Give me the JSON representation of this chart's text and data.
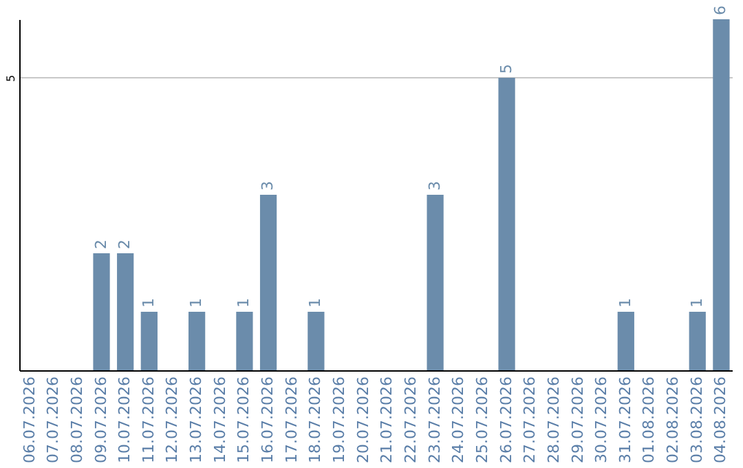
{
  "chart_data": {
    "type": "bar",
    "categories": [
      "06.07.2026",
      "07.07.2026",
      "08.07.2026",
      "09.07.2026",
      "10.07.2026",
      "11.07.2026",
      "12.07.2026",
      "13.07.2026",
      "14.07.2026",
      "15.07.2026",
      "16.07.2026",
      "17.07.2026",
      "18.07.2026",
      "19.07.2026",
      "20.07.2026",
      "21.07.2026",
      "22.07.2026",
      "23.07.2026",
      "24.07.2026",
      "25.07.2026",
      "26.07.2026",
      "27.07.2026",
      "28.07.2026",
      "29.07.2026",
      "30.07.2026",
      "31.07.2026",
      "01.08.2026",
      "02.08.2026",
      "03.08.2026",
      "04.08.2026"
    ],
    "values": [
      0,
      0,
      0,
      2,
      2,
      1,
      0,
      1,
      0,
      1,
      3,
      0,
      1,
      0,
      0,
      0,
      0,
      3,
      0,
      0,
      5,
      0,
      0,
      0,
      0,
      1,
      0,
      0,
      1,
      6
    ],
    "value_labels": [
      null,
      null,
      null,
      "2",
      "2",
      "1",
      null,
      "1",
      null,
      "1",
      "3",
      null,
      "1",
      null,
      null,
      null,
      null,
      "3",
      null,
      null,
      "5",
      null,
      null,
      null,
      null,
      "1",
      null,
      null,
      "1",
      "6"
    ],
    "color": "#6b8cab",
    "ylim": [
      0,
      6
    ],
    "yticks": [
      5
    ],
    "grid": "y"
  }
}
